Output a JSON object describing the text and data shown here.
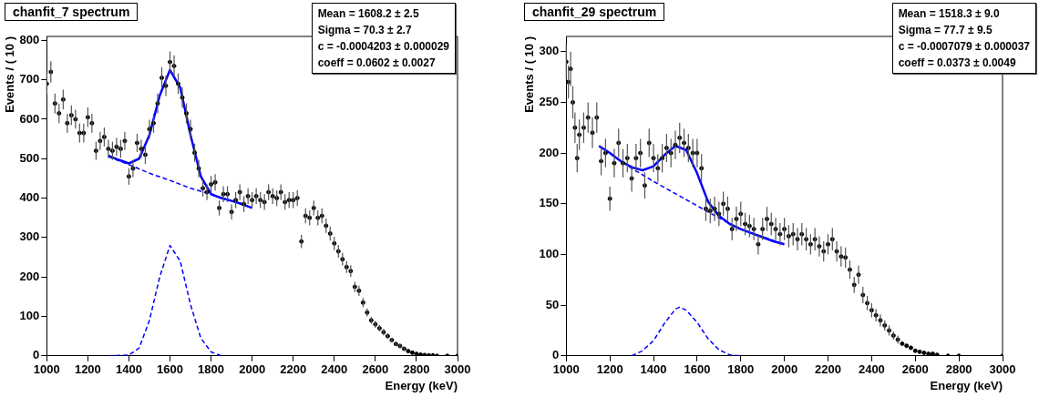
{
  "chart_data": [
    {
      "type": "scatter",
      "title": "chanfit_7 spectrum",
      "xlabel": "Energy (keV)",
      "ylabel": "Events / ( 10 )",
      "annotations": [
        "Mean =  1608.2 ± 2.5",
        "Sigma =  70.3 ± 2.7",
        "c = -0.0004203 ± 0.000029",
        "coeff =  0.0602 ± 0.0027"
      ],
      "xlim": [
        1000,
        3000
      ],
      "xticks": [
        1000,
        1200,
        1400,
        1600,
        1800,
        2000,
        2200,
        2400,
        2600,
        2800,
        3000
      ],
      "ylim": [
        0,
        810
      ],
      "yticks": [
        0,
        100,
        200,
        300,
        400,
        500,
        600,
        700,
        800
      ],
      "legend": false,
      "series": [
        {
          "color": "#000000",
          "marker": "circle",
          "x": [
            1000,
            1020,
            1040,
            1060,
            1080,
            1100,
            1120,
            1140,
            1160,
            1180,
            1200,
            1220,
            1240,
            1260,
            1280,
            1300,
            1320,
            1340,
            1360,
            1380,
            1400,
            1420,
            1440,
            1460,
            1480,
            1500,
            1520,
            1540,
            1560,
            1580,
            1600,
            1620,
            1640,
            1660,
            1680,
            1700,
            1720,
            1740,
            1760,
            1780,
            1800,
            1820,
            1840,
            1860,
            1880,
            1900,
            1920,
            1940,
            1960,
            1980,
            2000,
            2020,
            2040,
            2060,
            2080,
            2100,
            2120,
            2140,
            2160,
            2180,
            2200,
            2220,
            2240,
            2260,
            2280,
            2300,
            2320,
            2340,
            2360,
            2380,
            2400,
            2420,
            2440,
            2460,
            2480,
            2500,
            2520,
            2540,
            2560,
            2580,
            2600,
            2620,
            2640,
            2660,
            2680,
            2700,
            2720,
            2740,
            2760,
            2780,
            2800,
            2820,
            2840,
            2860,
            2880,
            2900,
            2950,
            3000
          ],
          "values": [
            690,
            720,
            640,
            615,
            650,
            590,
            610,
            600,
            565,
            565,
            605,
            590,
            520,
            545,
            555,
            525,
            520,
            530,
            525,
            545,
            455,
            475,
            540,
            525,
            510,
            575,
            590,
            640,
            705,
            685,
            745,
            735,
            690,
            655,
            615,
            575,
            515,
            475,
            425,
            415,
            435,
            440,
            375,
            410,
            410,
            365,
            395,
            415,
            385,
            405,
            395,
            405,
            395,
            390,
            415,
            405,
            400,
            415,
            390,
            395,
            395,
            400,
            290,
            355,
            350,
            375,
            350,
            355,
            330,
            310,
            285,
            265,
            245,
            225,
            215,
            175,
            165,
            135,
            110,
            90,
            80,
            70,
            60,
            50,
            40,
            30,
            25,
            18,
            12,
            8,
            5,
            3,
            2,
            1,
            1,
            0,
            0,
            0
          ],
          "errors": [
            26,
            27,
            25,
            25,
            25,
            24,
            25,
            24,
            24,
            24,
            25,
            24,
            23,
            23,
            24,
            23,
            23,
            23,
            23,
            23,
            21,
            22,
            23,
            23,
            23,
            24,
            24,
            25,
            27,
            26,
            27,
            27,
            26,
            26,
            25,
            24,
            23,
            22,
            21,
            20,
            21,
            21,
            19,
            20,
            20,
            19,
            20,
            20,
            20,
            20,
            20,
            20,
            20,
            20,
            20,
            20,
            20,
            20,
            20,
            20,
            20,
            20,
            17,
            19,
            19,
            19,
            19,
            19,
            18,
            18,
            17,
            16,
            16,
            15,
            15,
            13,
            13,
            12,
            10,
            9,
            9,
            8,
            8,
            7,
            6,
            5,
            5,
            4,
            null,
            null,
            null,
            null,
            null,
            null,
            null,
            null,
            null,
            null
          ]
        },
        {
          "type": "line",
          "color": "#0000ff",
          "line_style": "solid",
          "x": [
            1300,
            1350,
            1400,
            1450,
            1500,
            1550,
            1600,
            1650,
            1700,
            1750,
            1800,
            1850,
            1900,
            1950,
            2000
          ],
          "values": [
            508,
            497,
            488,
            500,
            560,
            660,
            725,
            680,
            560,
            455,
            410,
            400,
            393,
            385,
            375
          ]
        },
        {
          "type": "line",
          "color": "#0000ff",
          "line_style": "dashed",
          "x": [
            1300,
            1400,
            1500,
            1600,
            1700,
            1800,
            1900,
            2000
          ],
          "values": [
            505,
            485,
            463,
            445,
            425,
            410,
            393,
            375
          ]
        },
        {
          "type": "line",
          "color": "#0000ff",
          "line_style": "dashed",
          "x": [
            1300,
            1400,
            1450,
            1500,
            1550,
            1600,
            1650,
            1700,
            1750,
            1800,
            1850
          ],
          "values": [
            0,
            2,
            20,
            90,
            200,
            280,
            240,
            130,
            45,
            10,
            0
          ]
        }
      ]
    },
    {
      "type": "scatter",
      "title": "chanfit_29 spectrum",
      "xlabel": "Energy (keV)",
      "ylabel": "Events / ( 10 )",
      "annotations": [
        "Mean =  1518.3 ± 9.0",
        "Sigma =  77.7 ± 9.5",
        "c = -0.0007079 ± 0.000037",
        "coeff =  0.0373 ± 0.0049"
      ],
      "xlim": [
        1000,
        3000
      ],
      "xticks": [
        1000,
        1200,
        1400,
        1600,
        1800,
        2000,
        2200,
        2400,
        2600,
        2800,
        3000
      ],
      "ylim": [
        0,
        315
      ],
      "yticks": [
        0,
        50,
        100,
        150,
        200,
        250,
        300
      ],
      "legend": false,
      "series": [
        {
          "color": "#000000",
          "marker": "circle",
          "x": [
            1000,
            1010,
            1020,
            1030,
            1040,
            1050,
            1060,
            1080,
            1100,
            1120,
            1140,
            1160,
            1180,
            1200,
            1220,
            1240,
            1260,
            1280,
            1300,
            1320,
            1340,
            1360,
            1380,
            1400,
            1420,
            1440,
            1460,
            1480,
            1500,
            1520,
            1540,
            1560,
            1580,
            1600,
            1620,
            1640,
            1660,
            1680,
            1700,
            1720,
            1740,
            1760,
            1780,
            1800,
            1820,
            1840,
            1860,
            1880,
            1900,
            1920,
            1940,
            1960,
            1980,
            2000,
            2020,
            2040,
            2060,
            2080,
            2100,
            2120,
            2140,
            2160,
            2180,
            2200,
            2220,
            2240,
            2260,
            2280,
            2300,
            2320,
            2340,
            2360,
            2380,
            2400,
            2420,
            2440,
            2460,
            2480,
            2500,
            2520,
            2540,
            2560,
            2580,
            2600,
            2620,
            2640,
            2660,
            2680,
            2700,
            2750,
            2800,
            3000
          ],
          "values": [
            290,
            270,
            283,
            250,
            225,
            195,
            218,
            225,
            235,
            220,
            235,
            192,
            200,
            155,
            190,
            210,
            190,
            195,
            175,
            195,
            200,
            168,
            210,
            195,
            185,
            195,
            205,
            200,
            208,
            215,
            210,
            205,
            200,
            200,
            185,
            145,
            143,
            145,
            140,
            150,
            145,
            125,
            135,
            140,
            130,
            128,
            125,
            110,
            125,
            135,
            130,
            125,
            120,
            125,
            118,
            120,
            115,
            120,
            115,
            110,
            115,
            108,
            103,
            110,
            115,
            103,
            98,
            97,
            85,
            70,
            80,
            60,
            52,
            45,
            40,
            35,
            30,
            25,
            20,
            16,
            12,
            10,
            8,
            5,
            4,
            3,
            2,
            2,
            1,
            0,
            0,
            0
          ],
          "errors": [
            17,
            16,
            17,
            16,
            15,
            14,
            15,
            15,
            15,
            15,
            15,
            14,
            14,
            12,
            14,
            14,
            14,
            14,
            13,
            14,
            14,
            13,
            14,
            14,
            14,
            14,
            14,
            14,
            14,
            15,
            14,
            14,
            14,
            14,
            14,
            12,
            12,
            12,
            12,
            12,
            12,
            11,
            12,
            12,
            11,
            11,
            11,
            10,
            11,
            12,
            11,
            11,
            11,
            11,
            11,
            11,
            11,
            11,
            11,
            10,
            11,
            10,
            10,
            10,
            11,
            10,
            10,
            10,
            9,
            8,
            9,
            8,
            7,
            7,
            6,
            6,
            5,
            5,
            4,
            4,
            null,
            null,
            null,
            null,
            null,
            null,
            null,
            null,
            null,
            null,
            null,
            null
          ]
        },
        {
          "type": "line",
          "color": "#0000ff",
          "line_style": "solid",
          "x": [
            1150,
            1200,
            1250,
            1300,
            1350,
            1400,
            1450,
            1500,
            1550,
            1600,
            1650,
            1700,
            1750,
            1800,
            1850,
            1900,
            1950,
            2000
          ],
          "values": [
            207,
            200,
            192,
            186,
            183,
            187,
            198,
            207,
            203,
            180,
            152,
            138,
            130,
            125,
            121,
            117,
            113,
            110
          ]
        },
        {
          "type": "line",
          "color": "#0000ff",
          "line_style": "dashed",
          "x": [
            1150,
            1300,
            1400,
            1500,
            1600,
            1700,
            1800,
            2000
          ],
          "values": [
            207,
            185,
            172,
            160,
            148,
            136,
            125,
            110
          ]
        },
        {
          "type": "line",
          "color": "#0000ff",
          "line_style": "dashed",
          "x": [
            1300,
            1350,
            1400,
            1450,
            1500,
            1520,
            1550,
            1600,
            1650,
            1700,
            1750,
            1800
          ],
          "values": [
            0,
            5,
            15,
            32,
            46,
            48,
            45,
            33,
            17,
            6,
            1,
            0
          ]
        }
      ]
    }
  ]
}
